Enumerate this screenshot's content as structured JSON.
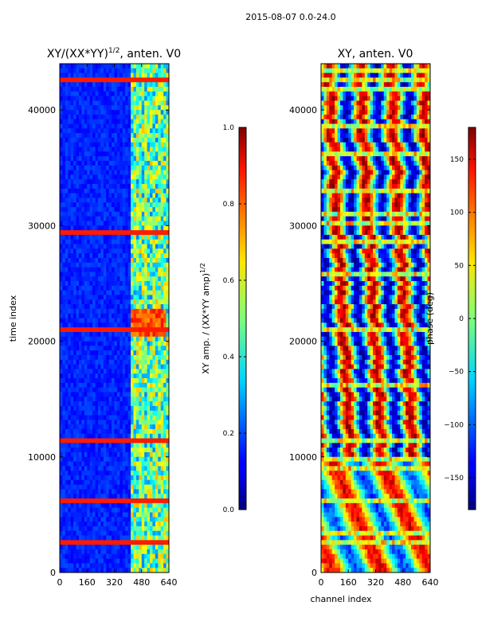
{
  "suptitle": "2015-08-07 0.0-24.0",
  "chart_data": [
    {
      "type": "heatmap",
      "title": "XY/(XX*YY)",
      "title_sup": "1/2",
      "title_tail": ", anten. V0",
      "xlabel": "",
      "ylabel": "time index",
      "xlim": [
        0,
        640
      ],
      "ylim": [
        0,
        44000
      ],
      "xticks": [
        "0",
        "160",
        "320",
        "480",
        "640"
      ],
      "yticks": [
        "0",
        "10000",
        "20000",
        "30000",
        "40000"
      ],
      "colormap": "jet",
      "colorbar": {
        "label": "XY amp. / (XX*YY amp)",
        "label_sup": "1/2",
        "range": [
          0.0,
          1.0
        ],
        "ticks": [
          "0.0",
          "0.2",
          "0.4",
          "0.6",
          "0.8",
          "1.0"
        ]
      }
    },
    {
      "type": "heatmap",
      "title": "XY, anten. V0",
      "xlabel": "channel index",
      "ylabel": "",
      "xlim": [
        0,
        640
      ],
      "ylim": [
        0,
        44000
      ],
      "xticks": [
        "0",
        "160",
        "320",
        "480",
        "640"
      ],
      "yticks": [
        "0",
        "10000",
        "20000",
        "30000",
        "40000"
      ],
      "colormap": "jet",
      "colorbar": {
        "label": "phase (deg)",
        "range": [
          -180,
          180
        ],
        "ticks": [
          "−150",
          "−100",
          "−50",
          "0",
          "50",
          "100",
          "150"
        ]
      }
    }
  ]
}
